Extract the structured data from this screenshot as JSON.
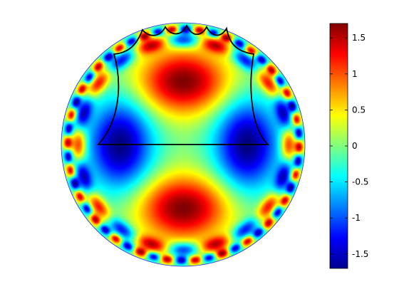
{
  "chart_data": {
    "type": "heatmap",
    "domain_shape": "disk",
    "colormap": "jet",
    "colorbar": {
      "range": [
        -1.7,
        1.7
      ],
      "ticks": [
        1.5,
        1,
        0.5,
        0,
        -0.5,
        -1,
        -1.5
      ],
      "tick_labels": [
        "1.5",
        "1",
        "0.5",
        "0",
        "-0.5",
        "-1",
        "-1.5"
      ],
      "placement": "right"
    },
    "field_features": {
      "maxima": [
        {
          "x": 0.0,
          "y": 0.53,
          "value": 1.7
        },
        {
          "x": 0.0,
          "y": -0.53,
          "value": 1.7
        }
      ],
      "minima": [
        {
          "x": -0.73,
          "y": 0.0,
          "value": -1.6
        },
        {
          "x": 0.73,
          "y": 0.0,
          "value": -1.6
        }
      ],
      "boundary_oscillation": "high-frequency alternating red/blue lobes near rim"
    },
    "overlay_curve": {
      "color": "#000000",
      "description": "closed black curve: horizontal base at y=0, concave sides, scalloped top edge near rim"
    },
    "grid": false,
    "axes_visible": false
  }
}
